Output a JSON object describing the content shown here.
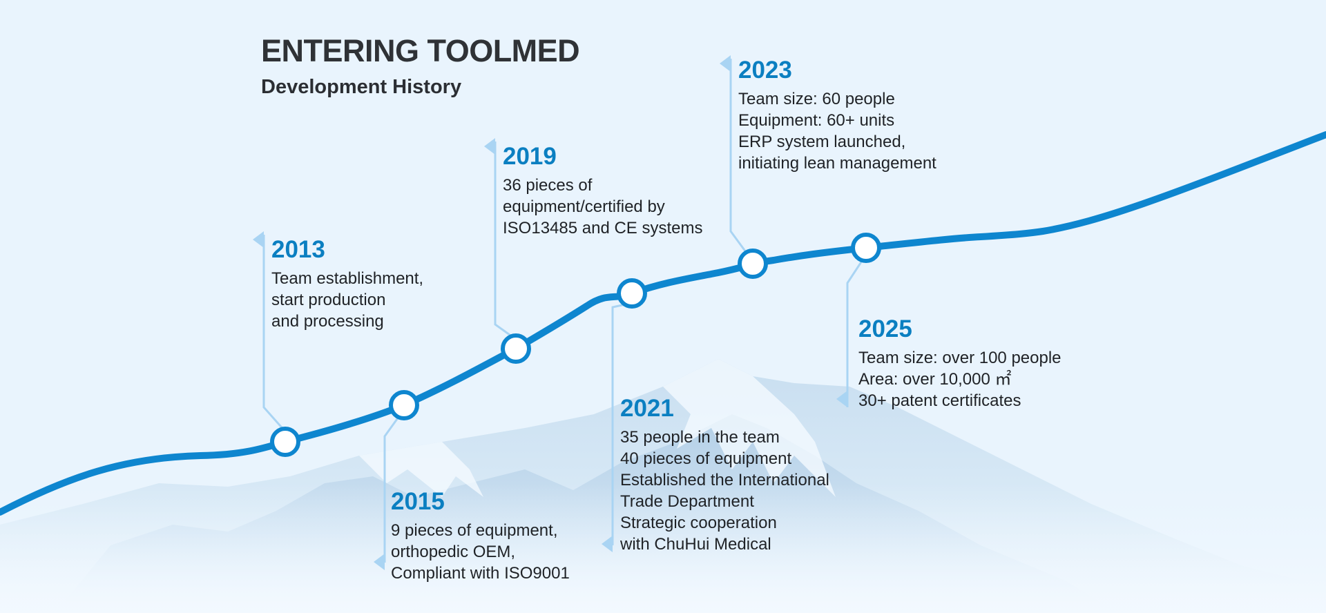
{
  "header": {
    "title": "ENTERING TOOLMED",
    "subtitle": "Development History"
  },
  "colors": {
    "background": "#e9f4fd",
    "curve": "#0e86cf",
    "year_text": "#0b7fc1",
    "leader_line": "#a9d4f3",
    "node_fill": "#ffffff"
  },
  "milestones": [
    {
      "year": "2013",
      "lines": [
        "Team establishment,",
        "start production",
        "and processing"
      ]
    },
    {
      "year": "2015",
      "lines": [
        "9 pieces of equipment,",
        "orthopedic OEM,",
        "Compliant with ISO9001"
      ]
    },
    {
      "year": "2019",
      "lines": [
        "36 pieces of",
        "equipment/certified by",
        "ISO13485 and CE systems"
      ]
    },
    {
      "year": "2021",
      "lines": [
        "35 people in the team",
        "40 pieces of equipment",
        "Established the International",
        "Trade Department",
        "Strategic cooperation",
        "with ChuHui Medical"
      ]
    },
    {
      "year": "2023",
      "lines": [
        "Team size: 60 people",
        "Equipment: 60+ units",
        "ERP system launched,",
        "initiating lean management"
      ]
    },
    {
      "year": "2025",
      "lines": [
        "Team size: over 100 people",
        "Area: over 10,000 ㎡",
        "30+ patent certificates"
      ]
    }
  ]
}
